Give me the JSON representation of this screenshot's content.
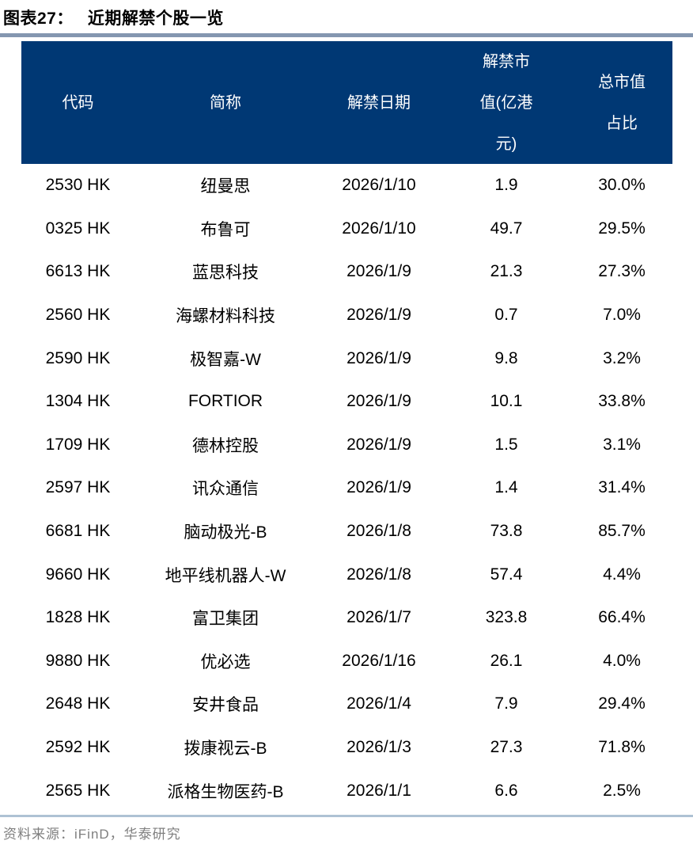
{
  "figure": {
    "label": "图表27：",
    "title": "近期解禁个股一览"
  },
  "chart_data": {
    "type": "table",
    "title": "近期解禁个股一览",
    "columns": [
      "代码",
      "简称",
      "解禁日期",
      "解禁市值(亿港元)",
      "总市值占比"
    ],
    "header_lines": [
      [
        "代码"
      ],
      [
        "简称"
      ],
      [
        "解禁日期"
      ],
      [
        "解禁市",
        "值(亿港",
        "元)"
      ],
      [
        "总市值",
        "占比"
      ]
    ],
    "rows": [
      {
        "code": "2530 HK",
        "name": "纽曼思",
        "date": "2026/1/10",
        "value": "1.9",
        "pct": "30.0%"
      },
      {
        "code": "0325 HK",
        "name": "布鲁可",
        "date": "2026/1/10",
        "value": "49.7",
        "pct": "29.5%"
      },
      {
        "code": "6613 HK",
        "name": "蓝思科技",
        "date": "2026/1/9",
        "value": "21.3",
        "pct": "27.3%"
      },
      {
        "code": "2560 HK",
        "name": "海螺材料科技",
        "date": "2026/1/9",
        "value": "0.7",
        "pct": "7.0%"
      },
      {
        "code": "2590 HK",
        "name": "极智嘉-W",
        "date": "2026/1/9",
        "value": "9.8",
        "pct": "3.2%"
      },
      {
        "code": "1304 HK",
        "name": "FORTIOR",
        "date": "2026/1/9",
        "value": "10.1",
        "pct": "33.8%"
      },
      {
        "code": "1709 HK",
        "name": "德林控股",
        "date": "2026/1/9",
        "value": "1.5",
        "pct": "3.1%"
      },
      {
        "code": "2597 HK",
        "name": "讯众通信",
        "date": "2026/1/9",
        "value": "1.4",
        "pct": "31.4%"
      },
      {
        "code": "6681 HK",
        "name": "脑动极光-B",
        "date": "2026/1/8",
        "value": "73.8",
        "pct": "85.7%"
      },
      {
        "code": "9660 HK",
        "name": "地平线机器人-W",
        "date": "2026/1/8",
        "value": "57.4",
        "pct": "4.4%"
      },
      {
        "code": "1828 HK",
        "name": "富卫集团",
        "date": "2026/1/7",
        "value": "323.8",
        "pct": "66.4%"
      },
      {
        "code": "9880 HK",
        "name": "优必选",
        "date": "2026/1/16",
        "value": "26.1",
        "pct": "4.0%"
      },
      {
        "code": "2648 HK",
        "name": "安井食品",
        "date": "2026/1/4",
        "value": "7.9",
        "pct": "29.4%"
      },
      {
        "code": "2592 HK",
        "name": "拨康视云-B",
        "date": "2026/1/3",
        "value": "27.3",
        "pct": "71.8%"
      },
      {
        "code": "2565 HK",
        "name": "派格生物医药-B",
        "date": "2026/1/1",
        "value": "6.6",
        "pct": "2.5%"
      }
    ],
    "source": "资料来源：iFinD，华泰研究"
  },
  "colors": {
    "header_bg": "#003874",
    "header_text": "#ffffff",
    "title_rule": "#8496b0",
    "footer_rule": "#aec2d4",
    "footer_text": "#7f7f7f",
    "body_text": "#000000"
  }
}
